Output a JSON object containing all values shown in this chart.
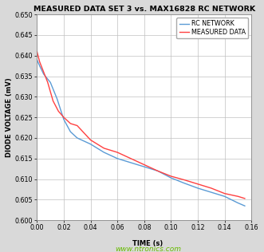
{
  "title": "MEASURED DATA SET 3 vs. MAX16828 RC NETWORK",
  "xlabel": "TIME (s)",
  "ylabel": "DIODE VOLTAGE (mV)",
  "xlim": [
    0.0,
    0.16
  ],
  "ylim": [
    0.6,
    0.65
  ],
  "yticks": [
    0.6,
    0.605,
    0.61,
    0.615,
    0.62,
    0.625,
    0.63,
    0.635,
    0.64,
    0.645,
    0.65
  ],
  "xticks": [
    0.0,
    0.02,
    0.04,
    0.06,
    0.08,
    0.1,
    0.12,
    0.14,
    0.16
  ],
  "rc_network_x": [
    0.0,
    0.002,
    0.005,
    0.01,
    0.015,
    0.02,
    0.025,
    0.03,
    0.04,
    0.05,
    0.06,
    0.07,
    0.08,
    0.09,
    0.1,
    0.11,
    0.12,
    0.13,
    0.14,
    0.15,
    0.155
  ],
  "rc_network_y": [
    0.639,
    0.6375,
    0.6355,
    0.6335,
    0.6295,
    0.6245,
    0.6215,
    0.62,
    0.6185,
    0.6165,
    0.615,
    0.614,
    0.613,
    0.612,
    0.6103,
    0.609,
    0.6078,
    0.6068,
    0.6058,
    0.6042,
    0.6035
  ],
  "measured_x": [
    0.0,
    0.002,
    0.005,
    0.008,
    0.012,
    0.016,
    0.02,
    0.025,
    0.03,
    0.04,
    0.05,
    0.06,
    0.07,
    0.08,
    0.09,
    0.1,
    0.11,
    0.12,
    0.13,
    0.14,
    0.15,
    0.155
  ],
  "measured_y": [
    0.641,
    0.6385,
    0.636,
    0.6335,
    0.629,
    0.6265,
    0.625,
    0.6235,
    0.623,
    0.6195,
    0.6175,
    0.6165,
    0.615,
    0.6135,
    0.612,
    0.6107,
    0.6098,
    0.6088,
    0.6078,
    0.6065,
    0.6058,
    0.6053
  ],
  "rc_color": "#5b9bd5",
  "measured_color": "#ff4040",
  "legend_labels": [
    "RC NETWORK",
    "MEASURED DATA"
  ],
  "fig_bg_color": "#d9d9d9",
  "plot_bg_color": "#ffffff",
  "title_fontsize": 6.8,
  "axis_fontsize": 6.0,
  "tick_fontsize": 5.8,
  "legend_fontsize": 5.8,
  "line_width": 1.0,
  "watermark": "TIME (s)",
  "watermark_text": "www.ntronics.com",
  "watermark_color": "#66bb00"
}
